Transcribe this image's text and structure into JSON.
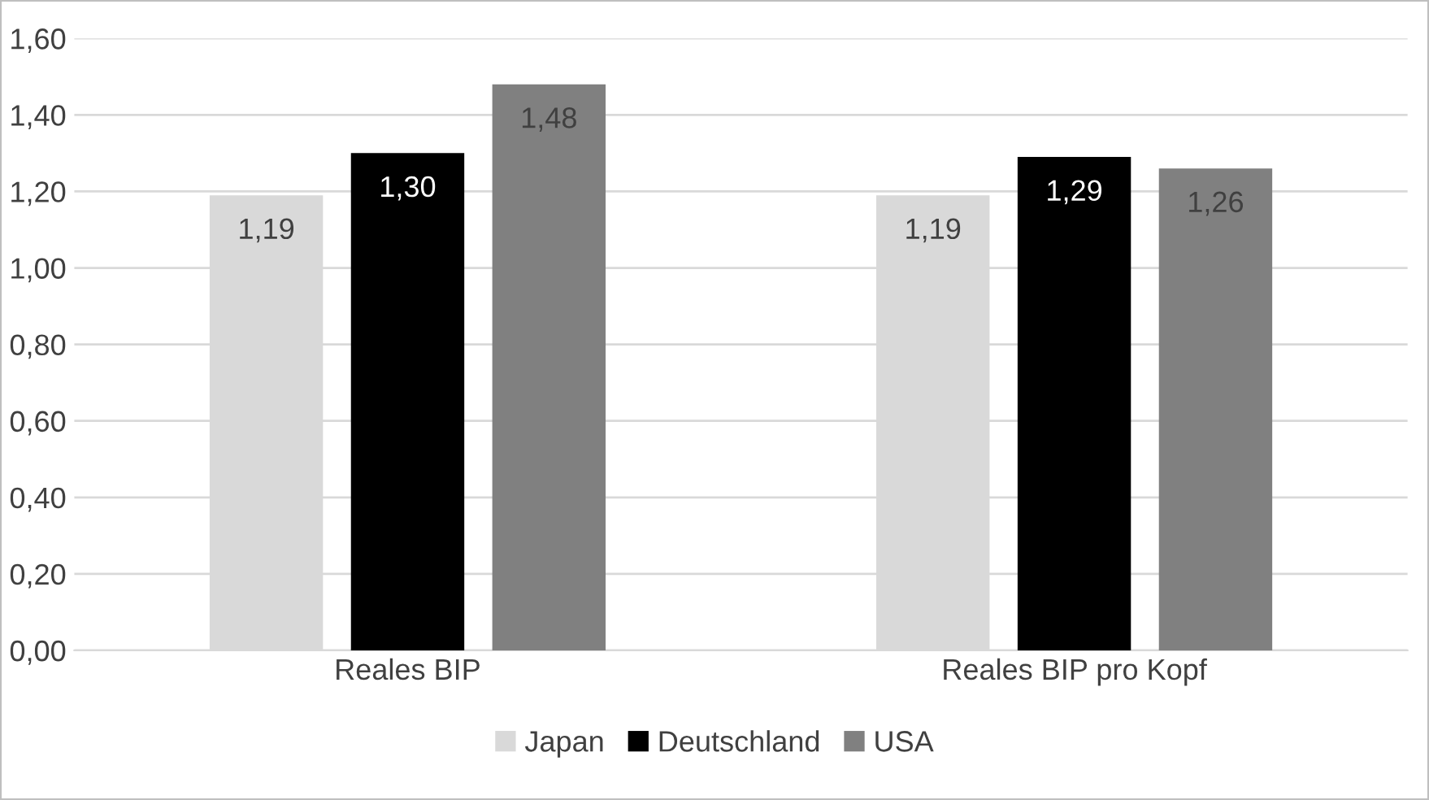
{
  "chart_data": {
    "type": "bar",
    "categories": [
      "Reales BIP",
      "Reales BIP pro Kopf"
    ],
    "series": [
      {
        "name": "Japan",
        "color": "#d9d9d9",
        "values": [
          1.19,
          1.19
        ],
        "value_labels": [
          "1,19",
          "1,19"
        ]
      },
      {
        "name": "Deutschland",
        "color": "#000000",
        "values": [
          1.3,
          1.29
        ],
        "value_labels": [
          "1,30",
          "1,29"
        ]
      },
      {
        "name": "USA",
        "color": "#808080",
        "values": [
          1.48,
          1.26
        ],
        "value_labels": [
          "1,48",
          "1,26"
        ]
      }
    ],
    "ylim": [
      0,
      1.6
    ],
    "yticks": [
      {
        "value": 0,
        "label": "0,00"
      },
      {
        "value": 0.2,
        "label": "0,20"
      },
      {
        "value": 0.4,
        "label": "0,40"
      },
      {
        "value": 0.6,
        "label": "0,60"
      },
      {
        "value": 0.8,
        "label": "0,80"
      },
      {
        "value": 1.0,
        "label": "1,00"
      },
      {
        "value": 1.2,
        "label": "1,20"
      },
      {
        "value": 1.4,
        "label": "1,40"
      },
      {
        "value": 1.6,
        "label": "1,60"
      }
    ],
    "grid": "y",
    "legend": "bottom"
  }
}
